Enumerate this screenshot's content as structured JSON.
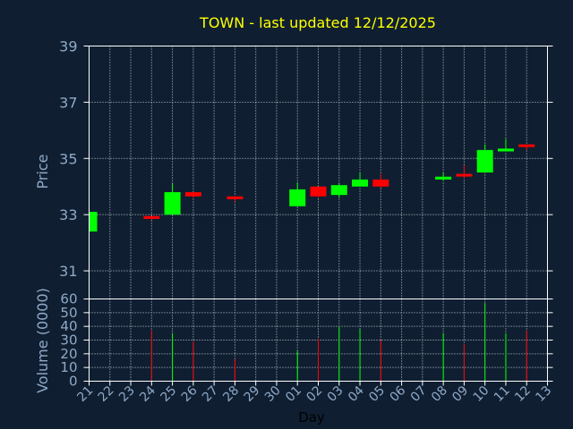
{
  "colors": {
    "background": "#0f1f31",
    "up": "#00ff00",
    "down": "#ff0000",
    "title": "#ffff00",
    "axis_text": "#8fa9c8",
    "frame": "#ffffff"
  },
  "chart_data": [
    {
      "type": "candlestick",
      "title": "TOWN - last updated 12/12/2025",
      "ylabel": "Price",
      "ylim": [
        30,
        39
      ],
      "yticks": [
        31,
        33,
        35,
        37,
        39
      ],
      "grid": true,
      "x": [
        "21",
        "22",
        "23",
        "24",
        "25",
        "26",
        "27",
        "28",
        "29",
        "30",
        "01",
        "02",
        "03",
        "04",
        "05",
        "06",
        "07",
        "08",
        "09",
        "10",
        "11",
        "12",
        "13"
      ],
      "candles": [
        {
          "x": "21",
          "open": 32.4,
          "high": 33.1,
          "low": 32.4,
          "close": 33.1
        },
        {
          "x": "24",
          "open": 32.95,
          "high": 32.95,
          "low": 32.8,
          "close": 32.85
        },
        {
          "x": "25",
          "open": 33.0,
          "high": 34.1,
          "low": 33.0,
          "close": 33.8
        },
        {
          "x": "26",
          "open": 33.8,
          "high": 33.8,
          "low": 33.6,
          "close": 33.65
        },
        {
          "x": "28",
          "open": 33.65,
          "high": 33.65,
          "low": 33.45,
          "close": 33.55
        },
        {
          "x": "01",
          "open": 33.3,
          "high": 34.15,
          "low": 33.3,
          "close": 33.9
        },
        {
          "x": "02",
          "open": 34.0,
          "high": 34.0,
          "low": 33.6,
          "close": 33.65
        },
        {
          "x": "03",
          "open": 33.7,
          "high": 34.1,
          "low": 33.6,
          "close": 34.05
        },
        {
          "x": "04",
          "open": 34.0,
          "high": 34.5,
          "low": 34.0,
          "close": 34.25
        },
        {
          "x": "05",
          "open": 34.25,
          "high": 34.45,
          "low": 33.95,
          "close": 34.0
        },
        {
          "x": "08",
          "open": 34.25,
          "high": 34.5,
          "low": 34.2,
          "close": 34.35
        },
        {
          "x": "09",
          "open": 34.45,
          "high": 34.75,
          "low": 34.3,
          "close": 34.4
        },
        {
          "x": "10",
          "open": 34.5,
          "high": 35.5,
          "low": 34.5,
          "close": 35.3
        },
        {
          "x": "11",
          "open": 35.25,
          "high": 35.7,
          "low": 35.25,
          "close": 35.35
        },
        {
          "x": "12",
          "open": 35.5,
          "high": 35.5,
          "low": 35.3,
          "close": 35.45
        }
      ]
    },
    {
      "type": "bar",
      "ylabel": "Volume (0000)",
      "xlabel": "Day",
      "ylim": [
        0,
        60
      ],
      "yticks": [
        0,
        10,
        20,
        30,
        40,
        50,
        60
      ],
      "grid": true,
      "x": [
        "21",
        "22",
        "23",
        "24",
        "25",
        "26",
        "27",
        "28",
        "29",
        "30",
        "01",
        "02",
        "03",
        "04",
        "05",
        "06",
        "07",
        "08",
        "09",
        "10",
        "11",
        "12",
        "13"
      ],
      "bars": [
        {
          "x": "21",
          "value": 0,
          "dir": "up"
        },
        {
          "x": "24",
          "value": 37,
          "dir": "down"
        },
        {
          "x": "25",
          "value": 35,
          "dir": "up"
        },
        {
          "x": "26",
          "value": 29,
          "dir": "down"
        },
        {
          "x": "28",
          "value": 16,
          "dir": "down"
        },
        {
          "x": "01",
          "value": 22,
          "dir": "up"
        },
        {
          "x": "02",
          "value": 31,
          "dir": "down"
        },
        {
          "x": "03",
          "value": 40,
          "dir": "up"
        },
        {
          "x": "04",
          "value": 38,
          "dir": "up"
        },
        {
          "x": "05",
          "value": 30,
          "dir": "down"
        },
        {
          "x": "08",
          "value": 35,
          "dir": "up"
        },
        {
          "x": "09",
          "value": 27,
          "dir": "down"
        },
        {
          "x": "10",
          "value": 57,
          "dir": "up"
        },
        {
          "x": "11",
          "value": 35,
          "dir": "up"
        },
        {
          "x": "12",
          "value": 37,
          "dir": "down"
        }
      ]
    }
  ]
}
